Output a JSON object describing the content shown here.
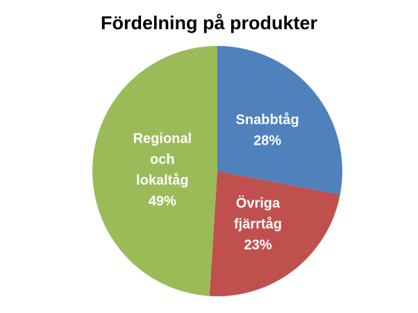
{
  "chart_data": {
    "type": "pie",
    "title": "Fördelning på produkter",
    "slices": [
      {
        "name": "Snabbtåg",
        "value": 28,
        "value_label": "28%",
        "color": "#4F81BD"
      },
      {
        "name": "Övriga fjärrtåg",
        "value": 23,
        "value_label": "23%",
        "color": "#C0504D"
      },
      {
        "name": "Regional och lokaltåg",
        "value": 49,
        "value_label": "49%",
        "color": "#9BBB59"
      }
    ],
    "start_angle": "12 o'clock",
    "direction": "clockwise",
    "legend": "none",
    "data_labels": "inside, category name and percentage"
  }
}
